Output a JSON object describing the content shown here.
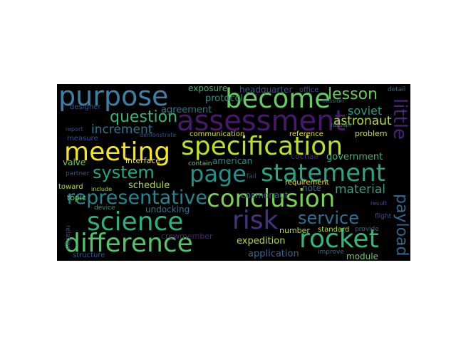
{
  "wordcloud": {
    "words": [
      "purpose",
      "become",
      "assessment",
      "lesson",
      "question",
      "astronaut",
      "increment",
      "soviet",
      "meeting",
      "specification",
      "little",
      "system",
      "page",
      "statement",
      "representative",
      "conclusion",
      "science",
      "risk",
      "service",
      "difference",
      "rocket",
      "payload",
      "headquarter",
      "exposure",
      "protocol",
      "agreement",
      "designer",
      "communication",
      "reference",
      "problem",
      "office",
      "mission",
      "detail",
      "interface",
      "government",
      "american",
      "cochair",
      "valve",
      "schedule",
      "note",
      "material",
      "requirement",
      "partner",
      "toward",
      "include",
      "cosmonaut",
      "device",
      "undocking",
      "topic",
      "crewmember",
      "number",
      "standard",
      "expedition",
      "application",
      "module",
      "improve",
      "structure",
      "flight",
      "result",
      "provide",
      "relation",
      "russian",
      "measure",
      "demonstrate",
      "contain",
      "fail",
      "report"
    ]
  },
  "colors": {
    "background": "#000000",
    "palette": [
      "#fde725",
      "#5ec962",
      "#21918c",
      "#3b528b",
      "#440154"
    ]
  }
}
